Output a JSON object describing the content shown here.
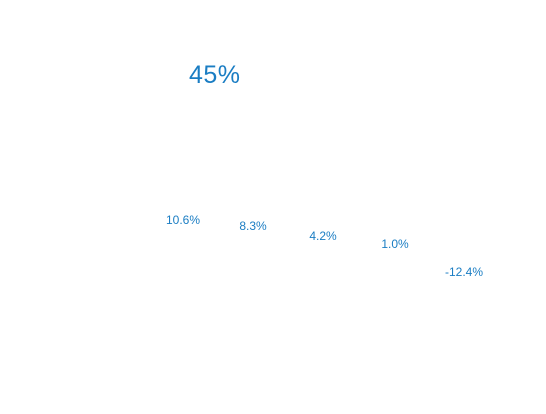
{
  "headline": {
    "value": "45%"
  },
  "colors": {
    "accent": "#1a7dc3"
  },
  "chart_data": {
    "type": "line",
    "series": [
      {
        "values": [
          10.6,
          8.3,
          4.2,
          1.0,
          -12.4
        ],
        "labels": [
          "10.6%",
          "8.3%",
          "4.2%",
          "1.0%",
          "-12.4%"
        ]
      }
    ]
  }
}
